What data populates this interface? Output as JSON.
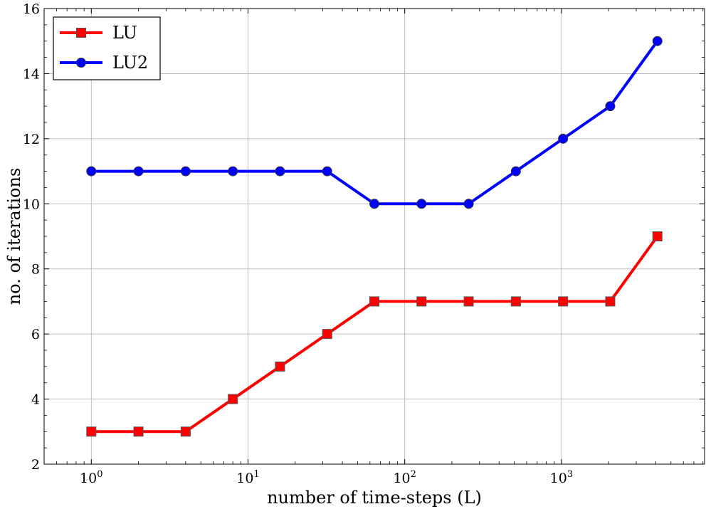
{
  "chart_data": {
    "type": "line",
    "title": "",
    "xlabel": "number of time-steps (L)",
    "ylabel": "no. of iterations",
    "xscale": "log",
    "xlim": [
      0.5,
      8192
    ],
    "ylim": [
      2,
      16
    ],
    "x": [
      1,
      2,
      4,
      8,
      16,
      32,
      64,
      128,
      256,
      512,
      1024,
      2048,
      4096
    ],
    "x_ticks": [
      1,
      10,
      100,
      1000
    ],
    "x_tick_labels": [
      {
        "base": "10",
        "exp": "0"
      },
      {
        "base": "10",
        "exp": "1"
      },
      {
        "base": "10",
        "exp": "2"
      },
      {
        "base": "10",
        "exp": "3"
      }
    ],
    "y_ticks": [
      2,
      4,
      6,
      8,
      10,
      12,
      14,
      16
    ],
    "y_tick_labels": [
      "2",
      "4",
      "6",
      "8",
      "10",
      "12",
      "14",
      "16"
    ],
    "grid": true,
    "legend_position": "top-left",
    "series": [
      {
        "name": "LU",
        "color": "#ff0000",
        "marker": "square",
        "values": [
          3,
          3,
          3,
          4,
          5,
          6,
          7,
          7,
          7,
          7,
          7,
          7,
          9
        ]
      },
      {
        "name": "LU2",
        "color": "#0000ff",
        "marker": "circle",
        "values": [
          11,
          11,
          11,
          11,
          11,
          11,
          10,
          10,
          10,
          11,
          12,
          13,
          15
        ]
      }
    ]
  }
}
